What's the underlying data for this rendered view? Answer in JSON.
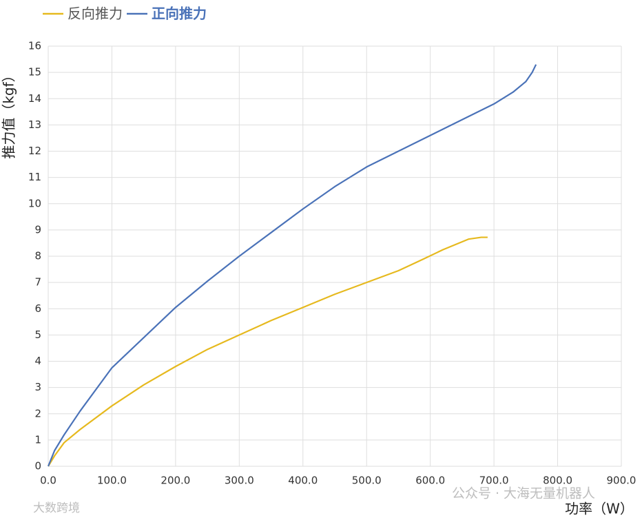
{
  "chart_data": {
    "type": "line",
    "x_label": "功率（W）",
    "y_label": "推力值（kgf）",
    "series": [
      {
        "name": "反向推力",
        "color": "#e6b91e",
        "x": [
          0,
          10,
          25,
          50,
          100,
          150,
          200,
          250,
          300,
          350,
          400,
          450,
          500,
          550,
          590,
          620,
          660,
          680,
          690
        ],
        "values": [
          0,
          0.4,
          0.9,
          1.4,
          2.3,
          3.1,
          3.8,
          4.45,
          5.0,
          5.55,
          6.05,
          6.55,
          7.0,
          7.45,
          7.9,
          8.25,
          8.65,
          8.72,
          8.72
        ]
      },
      {
        "name": "正向推力",
        "color": "#4a72b8",
        "x": [
          0,
          10,
          25,
          50,
          100,
          150,
          200,
          250,
          300,
          350,
          400,
          450,
          500,
          550,
          600,
          650,
          700,
          730,
          750,
          760,
          766
        ],
        "values": [
          0,
          0.6,
          1.2,
          2.1,
          3.75,
          4.9,
          6.05,
          7.05,
          8.0,
          8.9,
          9.8,
          10.65,
          11.4,
          12.0,
          12.6,
          13.2,
          13.8,
          14.25,
          14.65,
          15.0,
          15.3
        ]
      }
    ],
    "xlim": [
      0,
      900
    ],
    "xticks": [
      {
        "value": 0,
        "label": "0.0"
      },
      {
        "value": 100,
        "label": "100.0"
      },
      {
        "value": 200,
        "label": "200.0"
      },
      {
        "value": 300,
        "label": "300.0"
      },
      {
        "value": 400,
        "label": "400.0"
      },
      {
        "value": 500,
        "label": "500.0"
      },
      {
        "value": 600,
        "label": "600.0"
      },
      {
        "value": 700,
        "label": "700.0"
      },
      {
        "value": 800,
        "label": "800.0"
      },
      {
        "value": 900,
        "label": "900.0"
      }
    ],
    "ylim": [
      0,
      16
    ],
    "yticks": [
      0,
      1,
      2,
      3,
      4,
      5,
      6,
      7,
      8,
      9,
      10,
      11,
      12,
      13,
      14,
      15,
      16
    ],
    "grid": true,
    "legend": "top-left",
    "annotations": [
      "公众号 · 大海无量机器人",
      "大数跨境"
    ]
  }
}
